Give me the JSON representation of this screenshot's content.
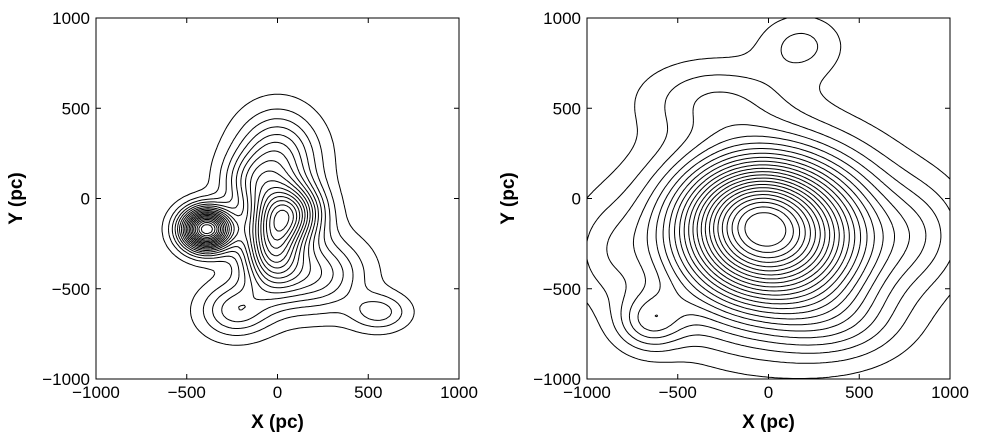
{
  "chart_data": [
    {
      "type": "contour",
      "title": "",
      "xlabel": "X (pc)",
      "ylabel": "Y (pc)",
      "xlim": [
        -1000,
        1000
      ],
      "ylim": [
        -1000,
        1000
      ],
      "xticks": [
        "−1000",
        "−500",
        "0",
        "500",
        "1000"
      ],
      "yticks": [
        "−1000",
        "−500",
        "0",
        "500",
        "1000"
      ],
      "xtick_values": [
        -1000,
        -500,
        0,
        500,
        1000
      ],
      "ytick_values": [
        -1000,
        -500,
        0,
        500,
        1000
      ],
      "levels": 19,
      "peaks": [
        {
          "x": -390,
          "y": -170,
          "amp": 1.0,
          "sx": 95,
          "sy": 80
        },
        {
          "x": -30,
          "y": -250,
          "amp": 0.55,
          "sx": 110,
          "sy": 170
        },
        {
          "x": 80,
          "y": -80,
          "amp": 0.48,
          "sx": 120,
          "sy": 110
        },
        {
          "x": 0,
          "y": 220,
          "amp": 0.32,
          "sx": 150,
          "sy": 170
        },
        {
          "x": 200,
          "y": -420,
          "amp": 0.28,
          "sx": 180,
          "sy": 140
        },
        {
          "x": -230,
          "y": -620,
          "amp": 0.22,
          "sx": 130,
          "sy": 100
        },
        {
          "x": 560,
          "y": -630,
          "amp": 0.16,
          "sx": 110,
          "sy": 70
        },
        {
          "x": -150,
          "y": 90,
          "amp": 0.18,
          "sx": 110,
          "sy": 110
        }
      ],
      "grid": false,
      "legend": "none"
    },
    {
      "type": "contour",
      "title": "",
      "xlabel": "X (pc)",
      "ylabel": "Y (pc)",
      "xlim": [
        -1000,
        1000
      ],
      "ylim": [
        -1000,
        1000
      ],
      "xticks": [
        "−1000",
        "−500",
        "0",
        "500",
        "1000"
      ],
      "yticks": [
        "−1000",
        "−500",
        "0",
        "500",
        "1000"
      ],
      "xtick_values": [
        -1000,
        -500,
        0,
        500,
        1000
      ],
      "ytick_values": [
        -1000,
        -500,
        0,
        500,
        1000
      ],
      "levels": 24,
      "peaks": [
        {
          "x": 20,
          "y": -220,
          "amp": 1.0,
          "sx": 380,
          "sy": 300
        },
        {
          "x": -100,
          "y": -60,
          "amp": 0.25,
          "sx": 250,
          "sy": 200
        },
        {
          "x": -650,
          "y": -680,
          "amp": 0.2,
          "sx": 130,
          "sy": 110
        },
        {
          "x": -300,
          "y": 550,
          "amp": 0.12,
          "sx": 280,
          "sy": 150
        },
        {
          "x": 180,
          "y": 850,
          "amp": 0.1,
          "sx": 160,
          "sy": 120
        },
        {
          "x": 850,
          "y": -200,
          "amp": 0.1,
          "sx": 180,
          "sy": 200
        },
        {
          "x": -900,
          "y": -300,
          "amp": 0.08,
          "sx": 150,
          "sy": 200
        },
        {
          "x": 400,
          "y": -700,
          "amp": 0.1,
          "sx": 250,
          "sy": 150
        }
      ],
      "grid": false,
      "legend": "none"
    }
  ]
}
